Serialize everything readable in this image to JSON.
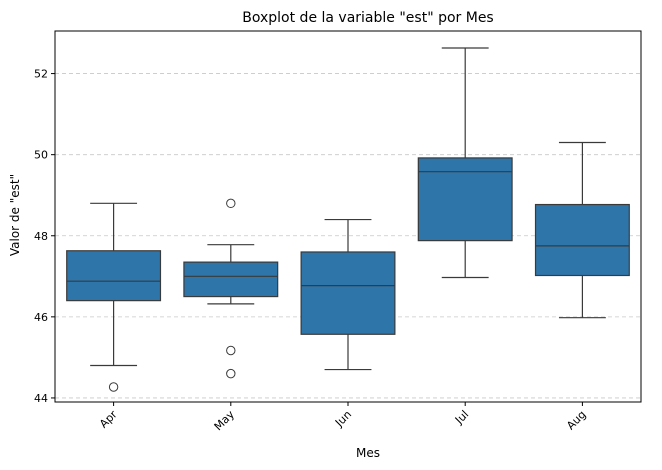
{
  "chart_data": {
    "type": "boxplot",
    "title": "Boxplot de la variable \"est\" por Mes",
    "xlabel": "Mes",
    "ylabel": "Valor de \"est\"",
    "ylim": [
      43.9,
      53.05
    ],
    "yticks": [
      44,
      46,
      48,
      50,
      52
    ],
    "grid": "y-dashed",
    "box_color": "#2e75aa",
    "line_color": "#3a3a3a",
    "categories": [
      "Apr",
      "May",
      "Jun",
      "Jul",
      "Aug"
    ],
    "boxes": [
      {
        "category": "Apr",
        "whisker_low": 44.8,
        "q1": 46.4,
        "median": 46.88,
        "q3": 47.63,
        "whisker_high": 48.8,
        "outliers": [
          44.27
        ]
      },
      {
        "category": "May",
        "whisker_low": 46.32,
        "q1": 46.5,
        "median": 47.0,
        "q3": 47.35,
        "whisker_high": 47.78,
        "outliers": [
          48.8,
          45.17,
          44.6
        ]
      },
      {
        "category": "Jun",
        "whisker_low": 44.7,
        "q1": 45.57,
        "median": 46.77,
        "q3": 47.6,
        "whisker_high": 48.4,
        "outliers": []
      },
      {
        "category": "Jul",
        "whisker_low": 46.97,
        "q1": 47.88,
        "median": 49.58,
        "q3": 49.92,
        "whisker_high": 52.63,
        "outliers": []
      },
      {
        "category": "Aug",
        "whisker_low": 45.98,
        "q1": 47.02,
        "median": 47.75,
        "q3": 48.77,
        "whisker_high": 50.3,
        "outliers": []
      }
    ]
  }
}
